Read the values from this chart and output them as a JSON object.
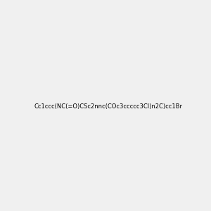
{
  "smiles": "Cc1ccc(NC(=O)CSc2nnc(COc3ccccc3Cl)n2C)cc1Br",
  "img_size": [
    300,
    300
  ],
  "background_color": "#f0f0f0",
  "title": "",
  "atom_colors": {
    "N": "#0000FF",
    "O": "#FF0000",
    "S": "#CCCC00",
    "Cl": "#00CC00",
    "Br": "#CC6600",
    "C": "#000000",
    "H": "#808080"
  }
}
